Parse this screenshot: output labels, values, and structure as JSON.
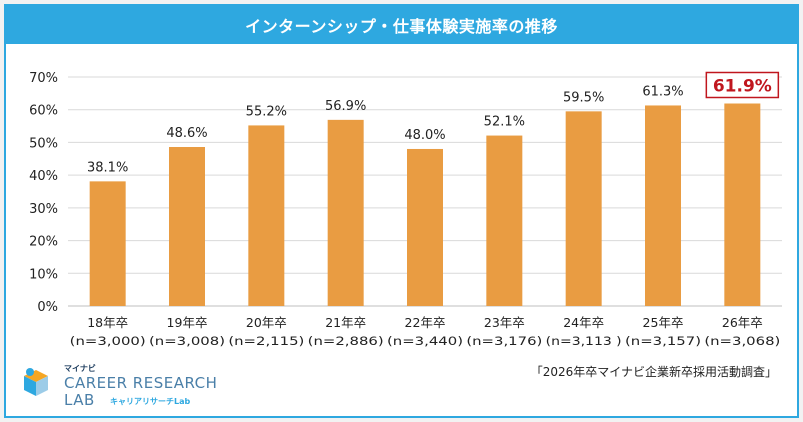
{
  "title": "インターンシップ・仕事体験実施率の推移",
  "chart_data": {
    "type": "bar",
    "categories": [
      "18年卒",
      "19年卒",
      "20年卒",
      "21年卒",
      "22年卒",
      "23年卒",
      "24年卒",
      "25年卒",
      "26年卒"
    ],
    "sample_sizes": [
      "(n=3,000)",
      "(n=3,008)",
      "(n=2,115)",
      "(n=2,886)",
      "(n=3,440)",
      "(n=3,176)",
      "(n=3,113 )",
      "(n=3,157)",
      "(n=3,068)"
    ],
    "values": [
      38.1,
      48.6,
      55.2,
      56.9,
      48.0,
      52.1,
      59.5,
      61.3,
      61.9
    ],
    "value_labels": [
      "38.1%",
      "48.6%",
      "55.2%",
      "56.9%",
      "48.0%",
      "52.1%",
      "59.5%",
      "61.3%",
      "61.9%"
    ],
    "y_ticks": [
      "0%",
      "10%",
      "20%",
      "30%",
      "40%",
      "50%",
      "60%",
      "70%"
    ],
    "ylim": [
      0,
      70
    ],
    "grid": true,
    "highlight_index": 8,
    "bar_color": "#e99c42",
    "highlight_color": "#c0161e",
    "grid_color": "#d9d9d9"
  },
  "logo": {
    "top": "マイナビ",
    "main": "CAREER RESEARCH",
    "lab": "LAB",
    "sub": "キャリアリサーチLab"
  },
  "source": "「2026年卒マイナビ企業新卒採用活動調査」"
}
